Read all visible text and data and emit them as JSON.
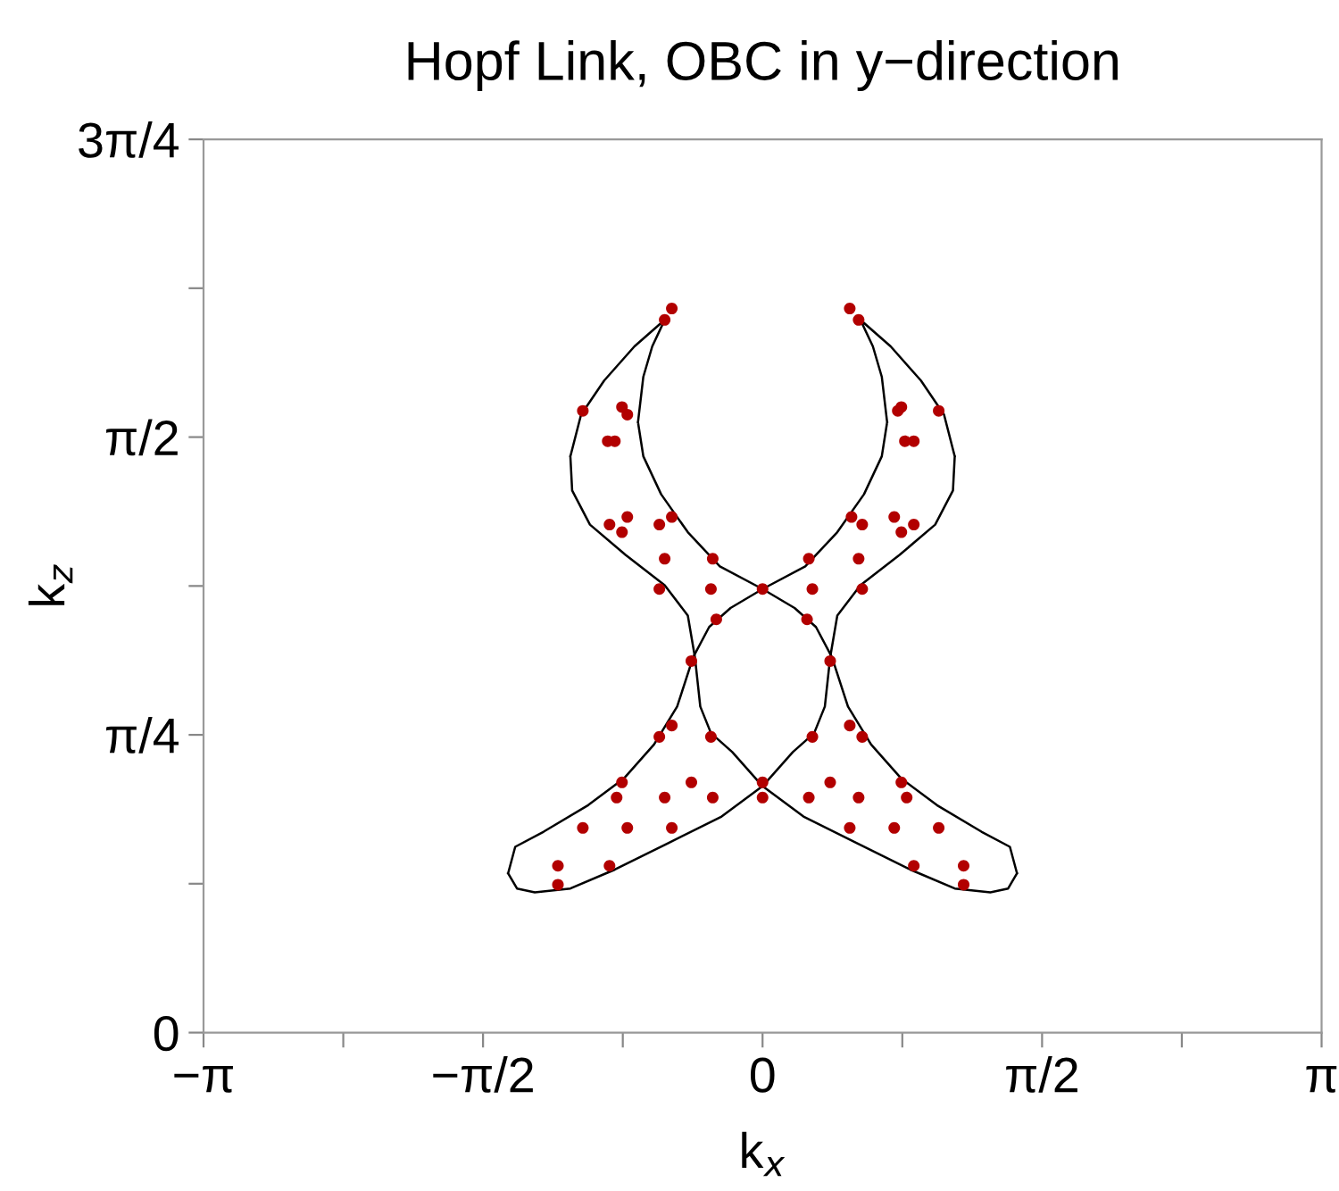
{
  "chart_data": {
    "type": "scatter",
    "title": "Hopf Link, OBC in y−direction",
    "xlabel": "k$_{x}$",
    "ylabel": "k$_{z}$",
    "xlim": [
      -3.1416,
      3.1416
    ],
    "ylim": [
      0,
      2.3562
    ],
    "xticks": [
      {
        "value": -3.1416,
        "label": "−π"
      },
      {
        "value": -2.3562,
        "label": null
      },
      {
        "value": -1.5708,
        "label": "−π/2"
      },
      {
        "value": -0.7854,
        "label": null
      },
      {
        "value": 0,
        "label": "0"
      },
      {
        "value": 0.7854,
        "label": null
      },
      {
        "value": 1.5708,
        "label": "π/2"
      },
      {
        "value": 2.3562,
        "label": null
      },
      {
        "value": 3.1416,
        "label": "π"
      }
    ],
    "yticks": [
      {
        "value": 0,
        "label": "0"
      },
      {
        "value": 0.3927,
        "label": null
      },
      {
        "value": 0.7854,
        "label": "π/4"
      },
      {
        "value": 1.1781,
        "label": null
      },
      {
        "value": 1.5708,
        "label": "π/2"
      },
      {
        "value": 1.9635,
        "label": null
      },
      {
        "value": 2.3562,
        "label": "3π/4"
      }
    ],
    "grid": false,
    "series": [
      {
        "type": "line",
        "color": "#000000",
        "marker": "none",
        "line_style": "solid",
        "x": [
          -1.08,
          -1.02,
          -0.89,
          -0.72,
          -0.55,
          null,
          -1.08,
          -1.07,
          -0.97,
          -0.77,
          -0.55,
          -0.42,
          -0.38,
          -0.35,
          -0.29,
          -0.17,
          0,
          0.23,
          0.53,
          0.83,
          1.08,
          1.28,
          1.38,
          1.43,
          null,
          -0.7,
          -0.67,
          -0.57,
          -0.42,
          -0.24,
          0,
          0.18,
          0.3,
          0.39,
          0.48,
          0.61,
          0.78,
          0.98,
          1.23,
          1.39,
          1.43,
          null,
          -0.7,
          -0.67,
          -0.62,
          -0.55
        ],
        "values": [
          1.52,
          1.63,
          1.72,
          1.81,
          1.88,
          null,
          1.52,
          1.43,
          1.34,
          1.26,
          1.18,
          1.1,
          0.99,
          0.86,
          0.79,
          0.74,
          0.65,
          0.57,
          0.5,
          0.43,
          0.38,
          0.37,
          0.38,
          0.42,
          null,
          1.61,
          1.52,
          1.42,
          1.32,
          1.23,
          1.17,
          1.12,
          1.07,
          0.99,
          0.86,
          0.76,
          0.67,
          0.6,
          0.53,
          0.49,
          0.42,
          null,
          1.61,
          1.73,
          1.81,
          1.88
        ]
      },
      {
        "type": "line",
        "color": "#000000",
        "marker": "none",
        "line_style": "solid",
        "x": [
          0.55,
          0.72,
          0.89,
          1.02,
          1.08,
          null,
          -1.43,
          -1.38,
          -1.28,
          -1.08,
          -0.83,
          -0.53,
          -0.23,
          0,
          0.17,
          0.29,
          0.35,
          0.38,
          0.42,
          0.55,
          0.77,
          0.97,
          1.07,
          1.08,
          null,
          -1.43,
          -1.39,
          -1.23,
          -0.98,
          -0.78,
          -0.61,
          -0.48,
          -0.39,
          -0.3,
          -0.18,
          0,
          0.24,
          0.42,
          0.57,
          0.67,
          0.7,
          null,
          0.55,
          0.62,
          0.67,
          0.7
        ],
        "values": [
          1.88,
          1.81,
          1.72,
          1.63,
          1.52,
          null,
          0.42,
          0.38,
          0.37,
          0.38,
          0.43,
          0.5,
          0.57,
          0.65,
          0.74,
          0.79,
          0.86,
          0.99,
          1.1,
          1.18,
          1.26,
          1.34,
          1.43,
          1.52,
          null,
          0.42,
          0.49,
          0.53,
          0.6,
          0.67,
          0.76,
          0.86,
          0.99,
          1.07,
          1.12,
          1.17,
          1.23,
          1.32,
          1.42,
          1.52,
          1.61,
          null,
          1.88,
          1.81,
          1.73,
          1.61
        ]
      },
      {
        "color": "#b20000",
        "marker": "circle",
        "x": [
          -0.51,
          -0.55,
          -1.01,
          -0.79,
          -0.76,
          -0.87,
          -0.83,
          -0.86,
          -0.76,
          -0.79,
          -0.58,
          -0.51,
          -0.55,
          -0.28,
          -0.58,
          -0.29,
          0.0,
          -0.26,
          0.49,
          0.54,
          0.99,
          0.76,
          0.78,
          0.8,
          0.85,
          0.5,
          0.56,
          0.74,
          0.85,
          0.78,
          0.26,
          0.54,
          0.28,
          0.56,
          0.25,
          -0.4,
          0.38,
          -0.51,
          -0.58,
          -0.29,
          0.28,
          0.49,
          0.56,
          -0.79,
          -0.82,
          -0.55,
          -0.4,
          -0.28,
          0.0,
          0.0,
          0.26,
          0.38,
          0.54,
          0.78,
          0.81,
          -1.01,
          -0.76,
          -0.51,
          0.49,
          0.74,
          0.99,
          -1.15,
          -0.86,
          -1.15,
          0.85,
          1.13,
          1.13
        ],
        "values": [
          1.91,
          1.88,
          1.64,
          1.65,
          1.63,
          1.56,
          1.56,
          1.34,
          1.36,
          1.32,
          1.34,
          1.36,
          1.25,
          1.25,
          1.17,
          1.17,
          1.17,
          1.09,
          1.91,
          1.88,
          1.64,
          1.64,
          1.65,
          1.56,
          1.56,
          1.36,
          1.34,
          1.36,
          1.34,
          1.32,
          1.25,
          1.25,
          1.17,
          1.17,
          1.09,
          0.98,
          0.98,
          0.81,
          0.78,
          0.78,
          0.78,
          0.81,
          0.78,
          0.66,
          0.62,
          0.62,
          0.66,
          0.62,
          0.66,
          0.62,
          0.62,
          0.66,
          0.62,
          0.66,
          0.62,
          0.54,
          0.54,
          0.54,
          0.54,
          0.54,
          0.54,
          0.44,
          0.44,
          0.39,
          0.44,
          0.44,
          0.39
        ]
      }
    ]
  }
}
